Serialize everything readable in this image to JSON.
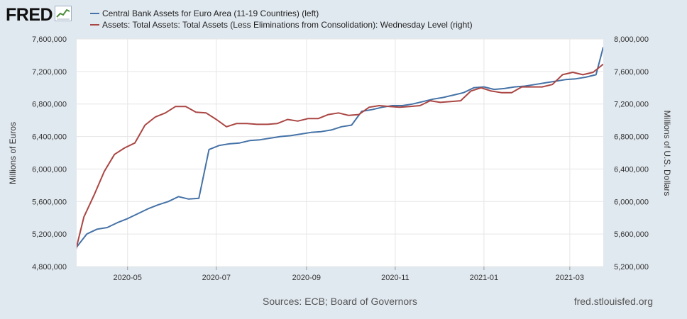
{
  "header": {
    "logo_text": "FRED",
    "logo_icon": "trend-graph-icon"
  },
  "footer": {
    "sources": "Sources: ECB; Board of Governors",
    "url": "fred.stlouisfed.org"
  },
  "colors": {
    "background": "#e1e9f0",
    "plot_background": "#ffffff",
    "grid": "#e6e6e6",
    "series_left": "#4572a7",
    "series_right": "#aa4643"
  },
  "chart_data": {
    "type": "line",
    "dual_axis": true,
    "grid": true,
    "legend_position": "top-left",
    "xlim": [
      "2020-03-27",
      "2021-03-24"
    ],
    "x_ticks": [
      {
        "date": "2020-05-01",
        "label": "2020-05"
      },
      {
        "date": "2020-07-01",
        "label": "2020-07"
      },
      {
        "date": "2020-09-01",
        "label": "2020-09"
      },
      {
        "date": "2020-11-01",
        "label": "2020-11"
      },
      {
        "date": "2021-01-01",
        "label": "2021-01"
      },
      {
        "date": "2021-03-01",
        "label": "2021-03"
      }
    ],
    "y_left": {
      "label": "Millions of Euros",
      "lim": [
        4800000,
        7600000
      ],
      "ticks": [
        {
          "value": 4800000,
          "label": "4,800,000"
        },
        {
          "value": 5200000,
          "label": "5,200,000"
        },
        {
          "value": 5600000,
          "label": "5,600,000"
        },
        {
          "value": 6000000,
          "label": "6,000,000"
        },
        {
          "value": 6400000,
          "label": "6,400,000"
        },
        {
          "value": 6800000,
          "label": "6,800,000"
        },
        {
          "value": 7200000,
          "label": "7,200,000"
        },
        {
          "value": 7600000,
          "label": "7,600,000"
        }
      ]
    },
    "y_right": {
      "label": "Millions of U.S. Dollars",
      "lim": [
        5200000,
        8000000
      ],
      "ticks": [
        {
          "value": 5200000,
          "label": "5,200,000"
        },
        {
          "value": 5600000,
          "label": "5,600,000"
        },
        {
          "value": 6000000,
          "label": "6,000,000"
        },
        {
          "value": 6400000,
          "label": "6,400,000"
        },
        {
          "value": 6800000,
          "label": "6,800,000"
        },
        {
          "value": 7200000,
          "label": "7,200,000"
        },
        {
          "value": 7600000,
          "label": "7,600,000"
        },
        {
          "value": 8000000,
          "label": "8,000,000"
        }
      ]
    },
    "series": [
      {
        "name": "Central Bank Assets for Euro Area (11-19 Countries) (left)",
        "axis": "left",
        "color": "#4572a7",
        "x": [
          "2020-03-27",
          "2020-04-03",
          "2020-04-10",
          "2020-04-17",
          "2020-04-24",
          "2020-05-01",
          "2020-05-08",
          "2020-05-15",
          "2020-05-22",
          "2020-05-29",
          "2020-06-05",
          "2020-06-12",
          "2020-06-19",
          "2020-06-26",
          "2020-07-03",
          "2020-07-10",
          "2020-07-17",
          "2020-07-24",
          "2020-07-31",
          "2020-08-07",
          "2020-08-14",
          "2020-08-21",
          "2020-08-28",
          "2020-09-04",
          "2020-09-11",
          "2020-09-18",
          "2020-09-25",
          "2020-10-02",
          "2020-10-09",
          "2020-10-16",
          "2020-10-23",
          "2020-10-30",
          "2020-11-06",
          "2020-11-13",
          "2020-11-20",
          "2020-11-27",
          "2020-12-04",
          "2020-12-11",
          "2020-12-18",
          "2020-12-25",
          "2021-01-01",
          "2021-01-08",
          "2021-01-15",
          "2021-01-22",
          "2021-01-29",
          "2021-02-05",
          "2021-02-12",
          "2021-02-19",
          "2021-02-26",
          "2021-03-05",
          "2021-03-12",
          "2021-03-19",
          "2021-03-24"
        ],
        "y": [
          5040000,
          5200000,
          5260000,
          5280000,
          5340000,
          5390000,
          5450000,
          5510000,
          5560000,
          5600000,
          5660000,
          5630000,
          5640000,
          6240000,
          6290000,
          6310000,
          6320000,
          6350000,
          6360000,
          6380000,
          6400000,
          6410000,
          6430000,
          6450000,
          6460000,
          6480000,
          6520000,
          6540000,
          6710000,
          6730000,
          6760000,
          6780000,
          6780000,
          6800000,
          6830000,
          6860000,
          6880000,
          6910000,
          6940000,
          7000000,
          7010000,
          6980000,
          6990000,
          7010000,
          7020000,
          7040000,
          7060000,
          7080000,
          7100000,
          7110000,
          7130000,
          7160000,
          7500000
        ]
      },
      {
        "name": "Assets: Total Assets: Total Assets (Less Eliminations from Consolidation): Wednesday Level (right)",
        "axis": "right",
        "color": "#aa4643",
        "x": [
          "2020-03-25",
          "2020-04-01",
          "2020-04-08",
          "2020-04-15",
          "2020-04-22",
          "2020-04-29",
          "2020-05-06",
          "2020-05-13",
          "2020-05-20",
          "2020-05-27",
          "2020-06-03",
          "2020-06-10",
          "2020-06-17",
          "2020-06-24",
          "2020-07-01",
          "2020-07-08",
          "2020-07-15",
          "2020-07-22",
          "2020-07-29",
          "2020-08-05",
          "2020-08-12",
          "2020-08-19",
          "2020-08-26",
          "2020-09-02",
          "2020-09-09",
          "2020-09-16",
          "2020-09-23",
          "2020-09-30",
          "2020-10-07",
          "2020-10-14",
          "2020-10-21",
          "2020-10-28",
          "2020-11-04",
          "2020-11-11",
          "2020-11-18",
          "2020-11-25",
          "2020-12-02",
          "2020-12-09",
          "2020-12-16",
          "2020-12-23",
          "2020-12-30",
          "2021-01-06",
          "2021-01-13",
          "2021-01-20",
          "2021-01-27",
          "2021-02-03",
          "2021-02-10",
          "2021-02-17",
          "2021-02-24",
          "2021-03-03",
          "2021-03-10",
          "2021-03-17",
          "2021-03-24"
        ],
        "y": [
          5300000,
          5810000,
          6080000,
          6370000,
          6580000,
          6660000,
          6720000,
          6940000,
          7040000,
          7090000,
          7170000,
          7170000,
          7100000,
          7090000,
          7010000,
          6920000,
          6960000,
          6960000,
          6950000,
          6950000,
          6960000,
          7010000,
          6990000,
          7020000,
          7020000,
          7070000,
          7090000,
          7060000,
          7070000,
          7160000,
          7180000,
          7170000,
          7160000,
          7170000,
          7180000,
          7240000,
          7220000,
          7230000,
          7240000,
          7360000,
          7400000,
          7360000,
          7340000,
          7340000,
          7410000,
          7410000,
          7410000,
          7440000,
          7560000,
          7590000,
          7560000,
          7590000,
          7690000
        ]
      }
    ]
  }
}
